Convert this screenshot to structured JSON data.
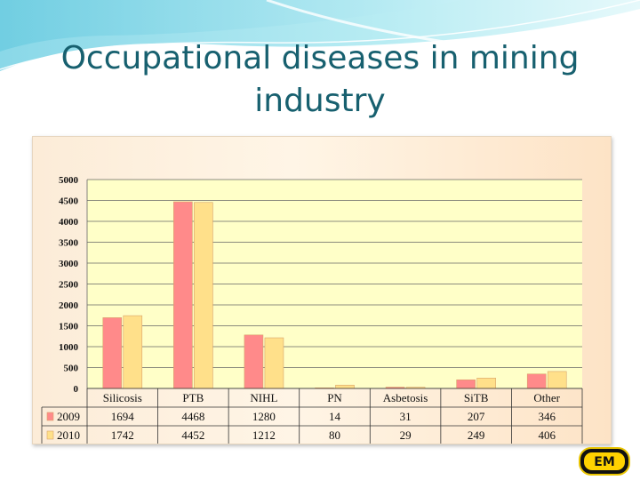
{
  "slide": {
    "title_line1": "Occupational diseases in mining",
    "title_line2": "industry",
    "title_color": "#17606f",
    "logo_text": "EM"
  },
  "colors": {
    "series_2009": "#ff8a8a",
    "series_2010": "#ffe08a",
    "plot_bg": "#ffffc8"
  },
  "chart_data": {
    "type": "bar",
    "categories": [
      "Silicosis",
      "PTB",
      "NIHL",
      "PN",
      "Asbetosis",
      "SiTB",
      "Other"
    ],
    "series": [
      {
        "name": "2009",
        "values": [
          1694,
          4468,
          1280,
          14,
          31,
          207,
          346
        ]
      },
      {
        "name": "2010",
        "values": [
          1742,
          4452,
          1212,
          80,
          29,
          249,
          406
        ]
      }
    ],
    "ylim": [
      0,
      5000
    ],
    "yticks": [
      0,
      500,
      1000,
      1500,
      2000,
      2500,
      3000,
      3500,
      4000,
      4500,
      5000
    ],
    "grid": true,
    "legend": "data-table-left",
    "data_table": true
  }
}
